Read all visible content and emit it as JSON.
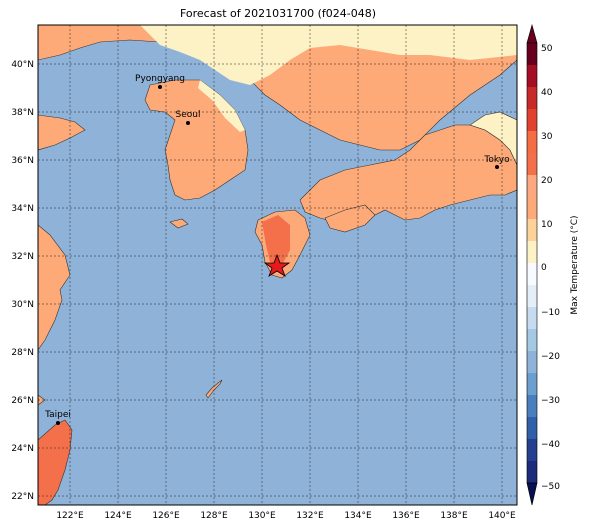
{
  "title": "Forecast of 2021031700 (f024-048)",
  "map": {
    "lon_ticks": [
      "122°E",
      "124°E",
      "126°E",
      "128°E",
      "130°E",
      "132°E",
      "134°E",
      "136°E",
      "138°E",
      "140°E"
    ],
    "lat_ticks": [
      "40°N",
      "38°N",
      "36°N",
      "34°N",
      "32°N",
      "30°N",
      "28°N",
      "26°N",
      "24°N",
      "22°N"
    ],
    "cities": [
      {
        "name": "Pyongyang"
      },
      {
        "name": "Seoul"
      },
      {
        "name": "Tokyo"
      },
      {
        "name": "Taipei"
      }
    ],
    "marker": "star"
  },
  "colorbar": {
    "label": "Max Temperature (°C)",
    "ticks": [
      "50",
      "40",
      "30",
      "20",
      "10",
      "0",
      "−10",
      "−20",
      "−30",
      "−40",
      "−50"
    ],
    "colors": [
      "#67001f",
      "#b2182b",
      "#d6604d",
      "#f4a582",
      "#fddbc7",
      "#f7f7f7",
      "#d1e5f0",
      "#92c5de",
      "#4393c3",
      "#2166ac",
      "#053061"
    ]
  },
  "colors": {
    "ocean": "#8fb3d8",
    "land_warm": "#fdaa78",
    "land_cool": "#fdf2c6",
    "land_hot": "#f4704a",
    "star": "#e41a1c"
  }
}
